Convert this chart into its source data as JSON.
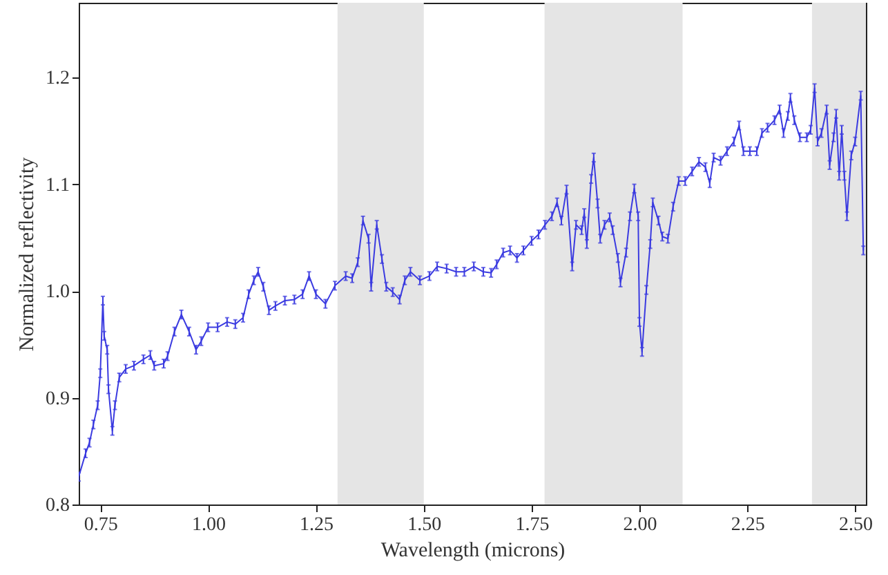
{
  "chart_data": {
    "type": "line",
    "xlabel": "Wavelength (microns)",
    "ylabel": "Normalized reflectivity",
    "xlim": [
      0.7,
      2.525
    ],
    "ylim": [
      0.8,
      1.27
    ],
    "xticks": [
      {
        "value": 0.75,
        "label": "0.75"
      },
      {
        "value": 1.0,
        "label": "1.00"
      },
      {
        "value": 1.25,
        "label": "1.25"
      },
      {
        "value": 1.5,
        "label": "1.50"
      },
      {
        "value": 1.75,
        "label": "1.75"
      },
      {
        "value": 2.0,
        "label": "2.00"
      },
      {
        "value": 2.25,
        "label": "2.25"
      },
      {
        "value": 2.5,
        "label": "2.50"
      }
    ],
    "yticks": [
      0.8,
      0.9,
      {
        "value": 1.0,
        "label": "1.0"
      },
      1.1,
      1.2
    ],
    "grid": false,
    "line_style": "solid",
    "bands": [
      {
        "axis": "x",
        "from": 1.3,
        "to": 1.5,
        "color": "#e5e5e5"
      },
      {
        "axis": "x",
        "from": 1.78,
        "to": 2.1,
        "color": "#e5e5e5"
      },
      {
        "axis": "x",
        "from": 2.4,
        "to": 2.525,
        "color": "#e5e5e5"
      }
    ],
    "series": [
      {
        "color": "#3a3ae0",
        "x": [
          0.7,
          0.716,
          0.725,
          0.734,
          0.744,
          0.75,
          0.756,
          0.759,
          0.766,
          0.769,
          0.778,
          0.784,
          0.794,
          0.809,
          0.828,
          0.85,
          0.866,
          0.875,
          0.897,
          0.906,
          0.922,
          0.938,
          0.956,
          0.972,
          0.984,
          1.0,
          1.022,
          1.044,
          1.063,
          1.081,
          1.094,
          1.106,
          1.116,
          1.128,
          1.141,
          1.156,
          1.178,
          1.2,
          1.219,
          1.234,
          1.25,
          1.272,
          1.294,
          1.319,
          1.334,
          1.347,
          1.359,
          1.372,
          1.378,
          1.391,
          1.403,
          1.413,
          1.428,
          1.444,
          1.456,
          1.469,
          1.491,
          1.513,
          1.531,
          1.553,
          1.575,
          1.594,
          1.616,
          1.638,
          1.656,
          1.669,
          1.684,
          1.7,
          1.716,
          1.731,
          1.75,
          1.766,
          1.781,
          1.797,
          1.809,
          1.819,
          1.831,
          1.844,
          1.853,
          1.866,
          1.872,
          1.878,
          1.888,
          1.894,
          1.903,
          1.909,
          1.919,
          1.931,
          1.938,
          1.95,
          1.956,
          1.969,
          1.978,
          1.988,
          1.997,
          2.0,
          2.006,
          2.016,
          2.025,
          2.031,
          2.044,
          2.053,
          2.066,
          2.078,
          2.091,
          2.106,
          2.122,
          2.138,
          2.153,
          2.163,
          2.172,
          2.188,
          2.203,
          2.219,
          2.231,
          2.241,
          2.256,
          2.272,
          2.284,
          2.297,
          2.313,
          2.325,
          2.334,
          2.344,
          2.35,
          2.359,
          2.372,
          2.388,
          2.397,
          2.406,
          2.413,
          2.422,
          2.434,
          2.441,
          2.45,
          2.456,
          2.463,
          2.469,
          2.475,
          2.481,
          2.491,
          2.5,
          2.513,
          2.519
        ],
        "values": [
          0.826,
          0.848,
          0.858,
          0.875,
          0.893,
          0.923,
          0.991,
          0.958,
          0.945,
          0.908,
          0.869,
          0.893,
          0.919,
          0.927,
          0.93,
          0.936,
          0.94,
          0.93,
          0.932,
          0.939,
          0.962,
          0.978,
          0.962,
          0.945,
          0.953,
          0.966,
          0.966,
          0.971,
          0.969,
          0.975,
          0.997,
          1.01,
          1.018,
          1.004,
          0.982,
          0.986,
          0.991,
          0.992,
          0.997,
          1.014,
          0.997,
          0.988,
          1.005,
          1.014,
          1.012,
          1.027,
          1.066,
          1.049,
          1.004,
          1.062,
          1.03,
          1.004,
          0.999,
          0.992,
          1.01,
          1.018,
          1.01,
          1.014,
          1.023,
          1.021,
          1.018,
          1.018,
          1.023,
          1.018,
          1.017,
          1.025,
          1.036,
          1.038,
          1.031,
          1.038,
          1.047,
          1.053,
          1.062,
          1.07,
          1.083,
          1.066,
          1.095,
          1.023,
          1.062,
          1.057,
          1.073,
          1.044,
          1.105,
          1.125,
          1.082,
          1.049,
          1.062,
          1.069,
          1.057,
          1.031,
          1.008,
          1.036,
          1.07,
          1.096,
          1.07,
          0.971,
          0.943,
          1.001,
          1.044,
          1.083,
          1.066,
          1.051,
          1.049,
          1.079,
          1.103,
          1.103,
          1.112,
          1.121,
          1.116,
          1.101,
          1.125,
          1.122,
          1.131,
          1.14,
          1.155,
          1.131,
          1.131,
          1.131,
          1.148,
          1.153,
          1.16,
          1.17,
          1.148,
          1.164,
          1.181,
          1.16,
          1.144,
          1.144,
          1.151,
          1.19,
          1.14,
          1.148,
          1.17,
          1.118,
          1.144,
          1.166,
          1.108,
          1.151,
          1.108,
          1.07,
          1.127,
          1.14,
          1.183,
          1.038
        ],
        "errors": [
          0.004,
          0.004,
          0.004,
          0.004,
          0.004,
          0.004,
          0.004,
          0.004,
          0.004,
          0.004,
          0.004,
          0.004,
          0.004,
          0.004,
          0.004,
          0.004,
          0.004,
          0.004,
          0.004,
          0.004,
          0.004,
          0.004,
          0.004,
          0.004,
          0.004,
          0.004,
          0.004,
          0.004,
          0.004,
          0.004,
          0.004,
          0.004,
          0.004,
          0.004,
          0.004,
          0.004,
          0.004,
          0.004,
          0.004,
          0.004,
          0.004,
          0.004,
          0.004,
          0.004,
          0.004,
          0.004,
          0.004,
          0.004,
          0.004,
          0.004,
          0.004,
          0.004,
          0.004,
          0.004,
          0.004,
          0.004,
          0.004,
          0.004,
          0.004,
          0.004,
          0.004,
          0.004,
          0.004,
          0.004,
          0.004,
          0.004,
          0.004,
          0.004,
          0.004,
          0.004,
          0.004,
          0.004,
          0.004,
          0.004,
          0.004,
          0.004,
          0.004,
          0.004,
          0.004,
          0.004,
          0.004,
          0.004,
          0.004,
          0.004,
          0.004,
          0.004,
          0.004,
          0.004,
          0.004,
          0.004,
          0.004,
          0.004,
          0.004,
          0.004,
          0.004,
          0.004,
          0.004,
          0.004,
          0.004,
          0.004,
          0.004,
          0.004,
          0.004,
          0.004,
          0.004,
          0.004,
          0.004,
          0.004,
          0.004,
          0.004,
          0.004,
          0.004,
          0.004,
          0.004,
          0.004,
          0.004,
          0.004,
          0.004,
          0.004,
          0.004,
          0.004,
          0.004,
          0.004,
          0.004,
          0.004,
          0.004,
          0.004,
          0.004,
          0.004,
          0.004,
          0.004,
          0.004,
          0.004,
          0.004,
          0.004,
          0.004,
          0.004,
          0.004,
          0.004,
          0.004,
          0.004,
          0.004,
          0.004,
          0.004
        ]
      }
    ]
  }
}
